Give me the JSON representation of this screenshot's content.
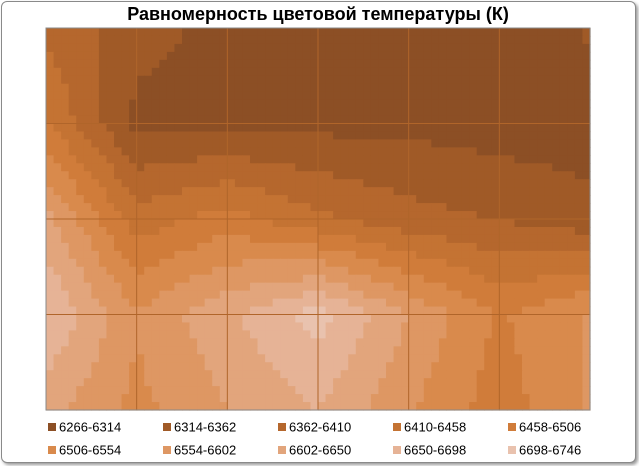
{
  "chart_data": {
    "type": "contour",
    "title": "Равномерность цветовой температуры (К)",
    "z": [
      [
        6400,
        6330,
        6300,
        6300,
        6300,
        6270,
        6320
      ],
      [
        6460,
        6300,
        6300,
        6300,
        6300,
        6290,
        6290
      ],
      [
        6620,
        6430,
        6480,
        6420,
        6380,
        6360,
        6330
      ],
      [
        6700,
        6560,
        6640,
        6720,
        6600,
        6500,
        6560
      ],
      [
        6620,
        6540,
        6600,
        6650,
        6560,
        6480,
        6560
      ]
    ],
    "series": [
      {
        "name": "6266-6314",
        "range": [
          6266,
          6314
        ],
        "color": "#8c4f25"
      },
      {
        "name": "6314-6362",
        "range": [
          6314,
          6362
        ],
        "color": "#a05a27"
      },
      {
        "name": "6362-6410",
        "range": [
          6362,
          6410
        ],
        "color": "#b5672d"
      },
      {
        "name": "6410-6458",
        "range": [
          6410,
          6458
        ],
        "color": "#c47333"
      },
      {
        "name": "6458-6506",
        "range": [
          6458,
          6506
        ],
        "color": "#d07c3a"
      },
      {
        "name": "6506-6554",
        "range": [
          6506,
          6554
        ],
        "color": "#d98a4c"
      },
      {
        "name": "6554-6602",
        "range": [
          6554,
          6602
        ],
        "color": "#de9763"
      },
      {
        "name": "6602-6650",
        "range": [
          6602,
          6650
        ],
        "color": "#e2a57c"
      },
      {
        "name": "6650-6698",
        "range": [
          6650,
          6698
        ],
        "color": "#e6b396"
      },
      {
        "name": "6698-6746",
        "range": [
          6698,
          6746
        ],
        "color": "#e9c2ae"
      }
    ],
    "grid": true
  }
}
